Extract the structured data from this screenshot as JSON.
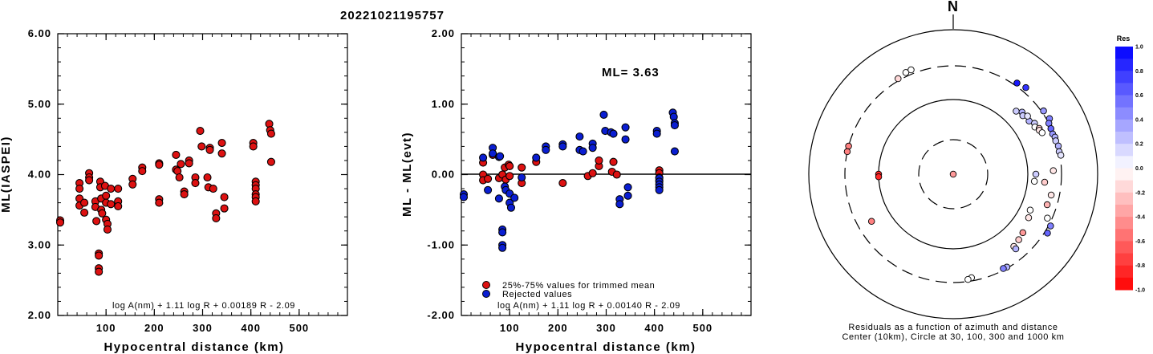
{
  "title": "20221021195757",
  "chart_data": [
    {
      "type": "scatter",
      "xlabel": "Hypocentral distance (km)",
      "ylabel": "ML(IASPEI)",
      "xlim": [
        0,
        600
      ],
      "ylim": [
        2.0,
        6.0
      ],
      "xticks": [
        "100",
        "200",
        "300",
        "400",
        "500"
      ],
      "yticks": [
        "2.00",
        "3.00",
        "4.00",
        "5.00",
        "6.00"
      ],
      "annotation": "log A(nm) + 1.11 log R + 0.00189 R - 2.09",
      "series": [
        {
          "color": "#dd1111",
          "points": [
            [
              5,
              3.35
            ],
            [
              5,
              3.32
            ],
            [
              45,
              3.88
            ],
            [
              45,
              3.8
            ],
            [
              45,
              3.66
            ],
            [
              45,
              3.56
            ],
            [
              55,
              3.6
            ],
            [
              55,
              3.46
            ],
            [
              65,
              4.02
            ],
            [
              65,
              3.96
            ],
            [
              65,
              3.92
            ],
            [
              78,
              3.62
            ],
            [
              78,
              3.54
            ],
            [
              80,
              3.34
            ],
            [
              85,
              2.88
            ],
            [
              85,
              2.85
            ],
            [
              85,
              2.67
            ],
            [
              85,
              2.62
            ],
            [
              88,
              3.9
            ],
            [
              88,
              3.82
            ],
            [
              90,
              3.66
            ],
            [
              90,
              3.5
            ],
            [
              92,
              3.45
            ],
            [
              98,
              3.84
            ],
            [
              100,
              3.7
            ],
            [
              100,
              3.6
            ],
            [
              100,
              3.36
            ],
            [
              103,
              3.3
            ],
            [
              103,
              3.22
            ],
            [
              110,
              3.8
            ],
            [
              110,
              3.58
            ],
            [
              125,
              3.8
            ],
            [
              125,
              3.62
            ],
            [
              125,
              3.55
            ],
            [
              155,
              3.94
            ],
            [
              155,
              3.86
            ],
            [
              175,
              4.1
            ],
            [
              175,
              4.05
            ],
            [
              210,
              4.16
            ],
            [
              210,
              4.14
            ],
            [
              210,
              3.65
            ],
            [
              210,
              3.6
            ],
            [
              245,
              4.28
            ],
            [
              245,
              4.07
            ],
            [
              248,
              4.05
            ],
            [
              252,
              3.96
            ],
            [
              255,
              4.15
            ],
            [
              262,
              3.76
            ],
            [
              262,
              3.72
            ],
            [
              272,
              4.2
            ],
            [
              272,
              4.16
            ],
            [
              285,
              3.96
            ],
            [
              285,
              3.88
            ],
            [
              295,
              4.62
            ],
            [
              298,
              4.4
            ],
            [
              310,
              3.96
            ],
            [
              312,
              3.82
            ],
            [
              315,
              4.38
            ],
            [
              315,
              4.35
            ],
            [
              322,
              3.8
            ],
            [
              328,
              3.45
            ],
            [
              328,
              3.38
            ],
            [
              340,
              4.45
            ],
            [
              340,
              4.3
            ],
            [
              345,
              3.68
            ],
            [
              345,
              3.52
            ],
            [
              405,
              4.45
            ],
            [
              405,
              4.4
            ],
            [
              410,
              3.9
            ],
            [
              410,
              3.85
            ],
            [
              410,
              3.8
            ],
            [
              410,
              3.72
            ],
            [
              410,
              3.68
            ],
            [
              410,
              3.62
            ],
            [
              438,
              4.72
            ],
            [
              440,
              4.63
            ],
            [
              442,
              4.58
            ],
            [
              442,
              4.18
            ]
          ]
        }
      ]
    },
    {
      "type": "scatter",
      "xlabel": "Hypocentral distance (km)",
      "ylabel": "ML - ML(evt)",
      "xlim": [
        0,
        600
      ],
      "ylim": [
        -2.0,
        2.0
      ],
      "xticks": [
        "100",
        "200",
        "300",
        "400",
        "500"
      ],
      "yticks": [
        "-2.00",
        "-1.00",
        "0.00",
        "1.00",
        "2.00"
      ],
      "ml_label": "ML= 3.63",
      "legend": [
        "25%-75% values for trimmed mean",
        "Rejected values"
      ],
      "annotation": "log A(nm) + 1.11 log R + 0.00140 R - 2.09",
      "series": [
        {
          "name": "25%-75% values for trimmed mean",
          "color": "#dd1111",
          "points": [
            [
              45,
              0.17
            ],
            [
              45,
              0.0
            ],
            [
              45,
              -0.08
            ],
            [
              55,
              -0.06
            ],
            [
              65,
              0.28
            ],
            [
              78,
              -0.05
            ],
            [
              85,
              0.0
            ],
            [
              90,
              0.1
            ],
            [
              92,
              -0.07
            ],
            [
              98,
              0.14
            ],
            [
              100,
              0.12
            ],
            [
              100,
              -0.02
            ],
            [
              125,
              0.1
            ],
            [
              125,
              -0.12
            ],
            [
              155,
              0.18
            ],
            [
              210,
              -0.12
            ],
            [
              262,
              -0.02
            ],
            [
              272,
              0.02
            ],
            [
              285,
              0.12
            ],
            [
              285,
              0.2
            ],
            [
              312,
              0.04
            ],
            [
              315,
              0.18
            ],
            [
              322,
              0.0
            ],
            [
              410,
              0.06
            ],
            [
              410,
              0.02
            ],
            [
              410,
              -0.04
            ],
            [
              410,
              -0.08
            ]
          ]
        },
        {
          "name": "Rejected values",
          "color": "#0a1ed2",
          "points": [
            [
              5,
              -0.28
            ],
            [
              5,
              -0.32
            ],
            [
              45,
              0.24
            ],
            [
              55,
              -0.22
            ],
            [
              65,
              0.38
            ],
            [
              65,
              0.3
            ],
            [
              78,
              -0.34
            ],
            [
              78,
              0.25
            ],
            [
              80,
              0.26
            ],
            [
              85,
              -0.78
            ],
            [
              85,
              -0.82
            ],
            [
              85,
              -1.0
            ],
            [
              85,
              -1.04
            ],
            [
              90,
              -0.17
            ],
            [
              92,
              -0.22
            ],
            [
              100,
              -0.27
            ],
            [
              100,
              -0.4
            ],
            [
              103,
              -0.47
            ],
            [
              110,
              -0.33
            ],
            [
              125,
              -0.04
            ],
            [
              155,
              0.24
            ],
            [
              175,
              0.4
            ],
            [
              175,
              0.35
            ],
            [
              210,
              0.43
            ],
            [
              210,
              0.4
            ],
            [
              245,
              0.54
            ],
            [
              245,
              0.35
            ],
            [
              252,
              0.33
            ],
            [
              272,
              0.44
            ],
            [
              272,
              0.38
            ],
            [
              295,
              0.85
            ],
            [
              298,
              0.62
            ],
            [
              310,
              0.6
            ],
            [
              315,
              0.58
            ],
            [
              328,
              -0.35
            ],
            [
              328,
              -0.42
            ],
            [
              340,
              0.67
            ],
            [
              340,
              0.5
            ],
            [
              345,
              -0.18
            ],
            [
              345,
              -0.3
            ],
            [
              405,
              0.62
            ],
            [
              405,
              0.58
            ],
            [
              410,
              -0.05
            ],
            [
              410,
              -0.1
            ],
            [
              410,
              -0.14
            ],
            [
              410,
              -0.18
            ],
            [
              410,
              -0.22
            ],
            [
              438,
              0.88
            ],
            [
              440,
              0.82
            ],
            [
              442,
              0.73
            ],
            [
              442,
              0.7
            ],
            [
              442,
              0.33
            ]
          ]
        }
      ]
    },
    {
      "type": "polar-scatter",
      "north_label": "N",
      "caption_line1": "Residuals as a function of azimuth and distance",
      "caption_line2": "Center (10km), Circle at 30, 100, 300 and 1000 km",
      "colorbar_title": "Res",
      "colorbar_labels": [
        "1.0",
        "0.8",
        "0.6",
        "0.4",
        "0.2",
        "0.0",
        "-0.2",
        "-0.4",
        "-0.6",
        "-0.8",
        "-1.0"
      ],
      "points_az_dist_res": [
        [
          0,
          10,
          -0.4
        ],
        [
          270,
          100,
          -0.85
        ],
        [
          268,
          100,
          -0.85
        ],
        [
          285,
          300,
          -0.5
        ],
        [
          282,
          300,
          -0.5
        ],
        [
          335,
          340,
          0.0
        ],
        [
          338,
          345,
          0.0
        ],
        [
          330,
          320,
          -0.15
        ],
        [
          35,
          330,
          0.9
        ],
        [
          40,
          350,
          0.8
        ],
        [
          60,
          330,
          0.5
        ],
        [
          55,
          320,
          0.4
        ],
        [
          62,
          300,
          0.5
        ],
        [
          65,
          295,
          0.6
        ],
        [
          68,
          290,
          0.4
        ],
        [
          70,
          300,
          0.3
        ],
        [
          72,
          295,
          0.2
        ],
        [
          75,
          305,
          0.3
        ],
        [
          78,
          300,
          0.2
        ],
        [
          80,
          310,
          0.1
        ],
        [
          45,
          160,
          0.2
        ],
        [
          48,
          180,
          0.3
        ],
        [
          50,
          170,
          0.2
        ],
        [
          55,
          180,
          0.3
        ],
        [
          52,
          190,
          0.1
        ],
        [
          58,
          200,
          0.2
        ],
        [
          60,
          190,
          0.0
        ],
        [
          62,
          210,
          -0.2
        ],
        [
          63,
          205,
          -0.1
        ],
        [
          65,
          215,
          0.0
        ],
        [
          90,
          130,
          0.2
        ],
        [
          95,
          125,
          0.0
        ],
        [
          102,
          230,
          -0.1
        ],
        [
          108,
          220,
          -0.3
        ],
        [
          115,
          140,
          0.0
        ],
        [
          120,
          150,
          -0.1
        ],
        [
          130,
          170,
          -0.4
        ],
        [
          135,
          180,
          -0.2
        ],
        [
          140,
          190,
          -0.1
        ],
        [
          140,
          210,
          0.3
        ],
        [
          150,
          290,
          0.3
        ],
        [
          152,
          285,
          0.5
        ],
        [
          170,
          270,
          0.0
        ],
        [
          172,
          280,
          0.0
        ],
        [
          118,
          320,
          0.5
        ],
        [
          122,
          330,
          0.6
        ],
        [
          240,
          190,
          -0.5
        ],
        [
          95,
          175,
          -0.2
        ],
        [
          88,
          230,
          -0.1
        ],
        [
          115,
          260,
          0.0
        ]
      ]
    }
  ]
}
